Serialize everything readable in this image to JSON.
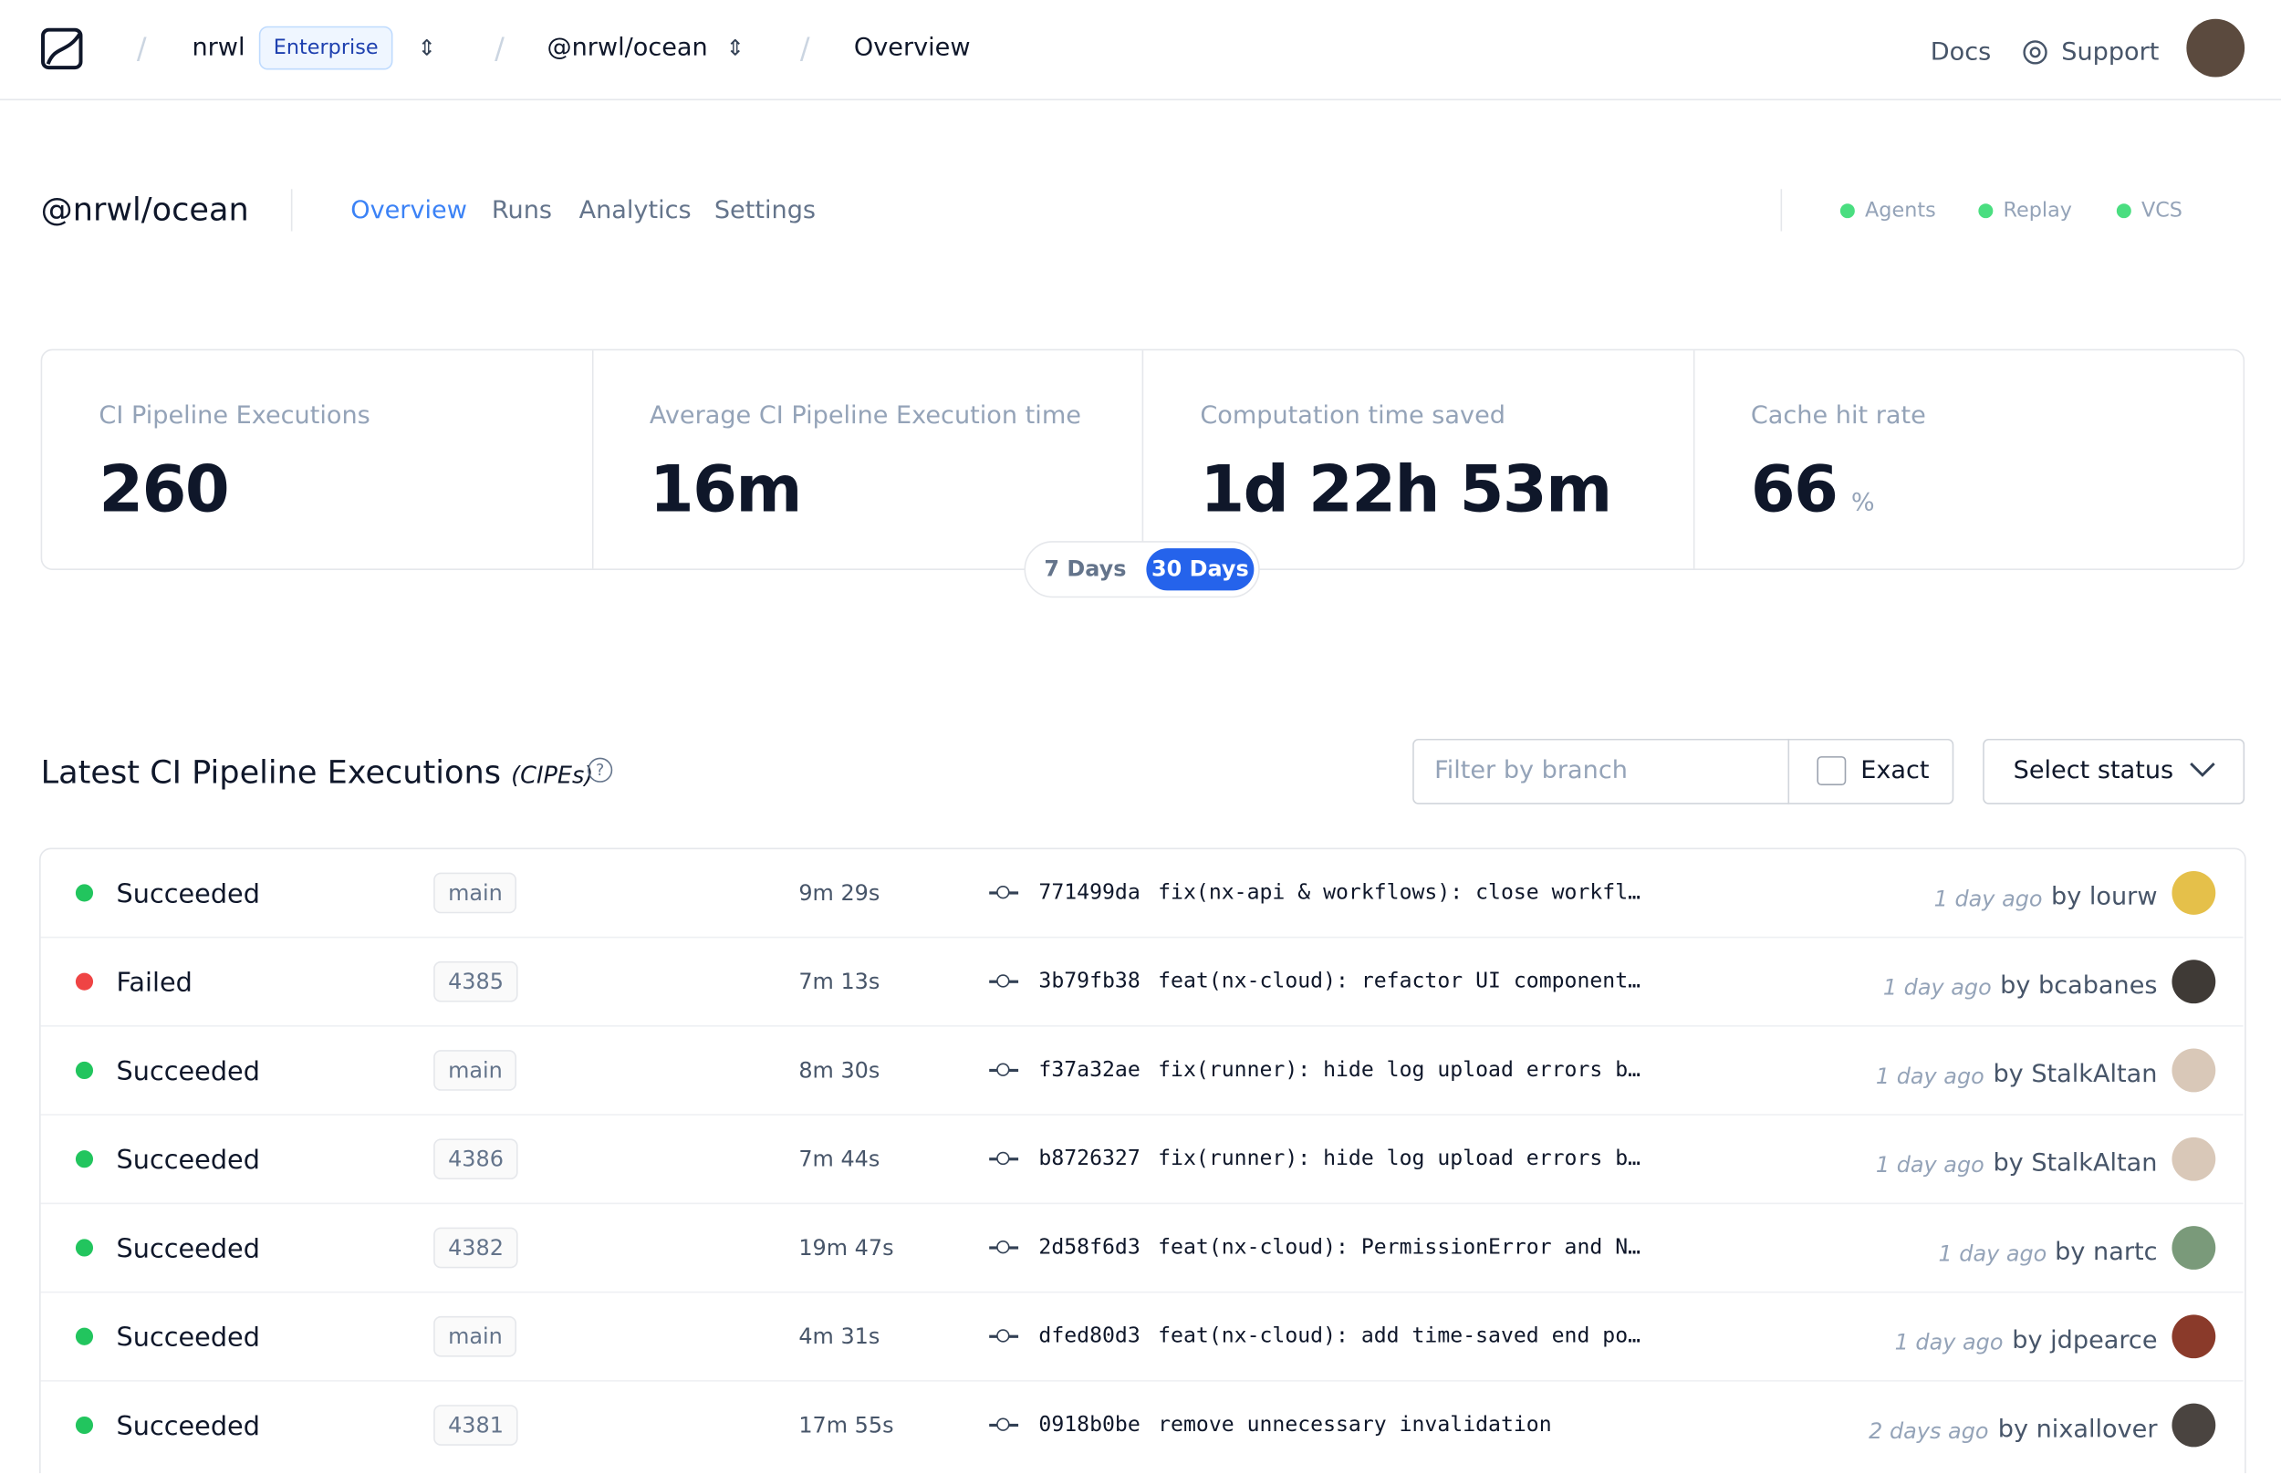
{
  "header": {
    "org": "nrwl",
    "badge": "Enterprise",
    "workspace": "@nrwl/ocean",
    "page": "Overview",
    "links": [
      "Docs",
      "Support"
    ]
  },
  "subnav": {
    "title": "@nrwl/ocean",
    "tabs": [
      "Overview",
      "Runs",
      "Analytics",
      "Settings"
    ],
    "active_tab": 0,
    "statuses": [
      "Agents",
      "Replay",
      "VCS"
    ]
  },
  "stats": [
    {
      "label": "CI Pipeline Executions",
      "value": "260"
    },
    {
      "label": "Average CI Pipeline Execution time",
      "value": "16m"
    },
    {
      "label": "Computation time saved",
      "value": "1d 22h 53m"
    },
    {
      "label": "Cache hit rate",
      "value": "66",
      "unit": "%"
    }
  ],
  "range": {
    "options": [
      "7 Days",
      "30 Days"
    ],
    "selected": 1
  },
  "section": {
    "title": "Latest CI Pipeline Executions",
    "abbr": "(CIPEs)",
    "filter_placeholder": "Filter by branch",
    "exact": "Exact",
    "select_status": "Select status"
  },
  "rows": [
    {
      "status": "Succeeded",
      "branch": "main",
      "duration": "9m 29s",
      "sha": "771499da",
      "message": "fix(nx-api & workflows): close workfl…",
      "time": "1 day ago",
      "author": "by lourw"
    },
    {
      "status": "Failed",
      "branch": "4385",
      "duration": "7m 13s",
      "sha": "3b79fb38",
      "message": "feat(nx-cloud): refactor UI component…",
      "time": "1 day ago",
      "author": "by bcabanes"
    },
    {
      "status": "Succeeded",
      "branch": "main",
      "duration": "8m 30s",
      "sha": "f37a32ae",
      "message": "fix(runner): hide log upload errors b…",
      "time": "1 day ago",
      "author": "by StalkAltan"
    },
    {
      "status": "Succeeded",
      "branch": "4386",
      "duration": "7m 44s",
      "sha": "b8726327",
      "message": "fix(runner): hide log upload errors b…",
      "time": "1 day ago",
      "author": "by StalkAltan"
    },
    {
      "status": "Succeeded",
      "branch": "4382",
      "duration": "19m 47s",
      "sha": "2d58f6d3",
      "message": "feat(nx-cloud): PermissionError and N…",
      "time": "1 day ago",
      "author": "by nartc"
    },
    {
      "status": "Succeeded",
      "branch": "main",
      "duration": "4m 31s",
      "sha": "dfed80d3",
      "message": "feat(nx-cloud): add time-saved end po…",
      "time": "1 day ago",
      "author": "by jdpearce"
    },
    {
      "status": "Succeeded",
      "branch": "4381",
      "duration": "17m 55s",
      "sha": "0918b0be",
      "message": "remove unnecessary invalidation",
      "time": "2 days ago",
      "author": "by nixallover"
    }
  ]
}
